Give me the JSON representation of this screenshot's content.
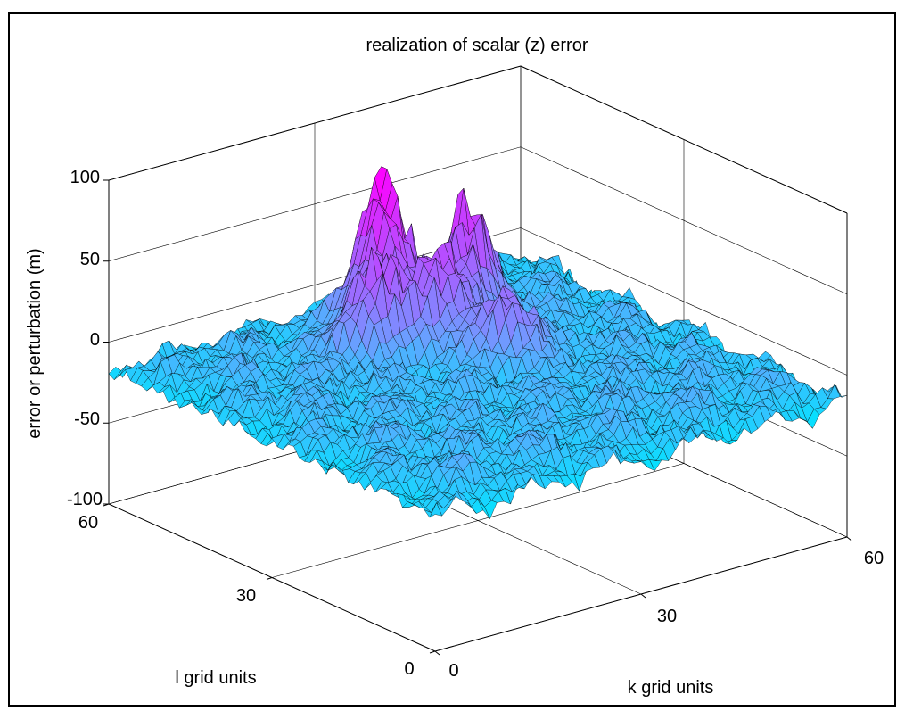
{
  "chart_data": {
    "type": "surface",
    "title": "realization of scalar (z) error",
    "zlabel": "error or perturbation (m)",
    "xlabel": "k grid units",
    "ylabel": "l grid units",
    "k_range": [
      0,
      60
    ],
    "l_range": [
      0,
      60
    ],
    "zlim": [
      -100,
      100
    ],
    "z_ticks": [
      "100",
      "50",
      "0",
      "-50",
      "-100"
    ],
    "k_ticks": [
      "0",
      "30",
      "60"
    ],
    "l_ticks": [
      "0",
      "30",
      "60"
    ],
    "grid": true,
    "colormap": [
      "#00e5ff",
      "#6f9bff",
      "#ff00ff"
    ],
    "edge_color": "#000000",
    "peaks": [
      {
        "k": 30,
        "l": 48,
        "z": 93
      },
      {
        "k": 40,
        "l": 44,
        "z": 75
      },
      {
        "k": 32,
        "l": 40,
        "z": 60
      },
      {
        "k": 24,
        "l": 42,
        "z": 50
      },
      {
        "k": 36,
        "l": 32,
        "z": 40
      }
    ]
  }
}
